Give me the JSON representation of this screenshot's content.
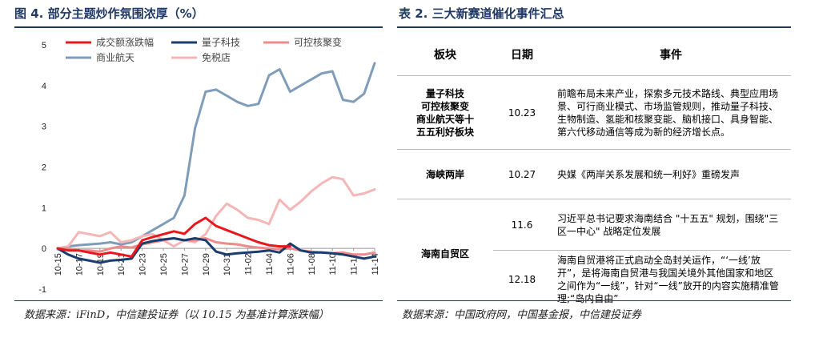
{
  "left_title": "图 4. 部分主题炒作氛围浓厚（%）",
  "right_title": "表 2. 三大新赛道催化事件汇总",
  "left_source": "数据来源：iFinD，中信建投证券（以 10.15 为基准计算涨跌幅）",
  "right_source": "数据来源：中国政府网，中国基金报，中信建投证券",
  "chart_data": {
    "type": "line",
    "title": "部分主题炒作氛围浓厚（%）",
    "ylim": [
      -1,
      5
    ],
    "yticks": [
      "5",
      "4",
      "3",
      "2",
      "1",
      "0",
      "-1"
    ],
    "x": [
      "10-15",
      "10-16",
      "10-17",
      "10-18",
      "10-19",
      "10-20",
      "10-21",
      "10-22",
      "10-23",
      "10-24",
      "10-25",
      "10-26",
      "10-27",
      "10-28",
      "10-29",
      "10-30",
      "10-31",
      "11-01",
      "11-02",
      "11-03",
      "11-04",
      "11-05",
      "11-06",
      "11-07",
      "11-08",
      "11-09",
      "11-10",
      "11-11",
      "11-12",
      "11-13",
      "11-14"
    ],
    "xticks": [
      "10-15",
      "10-17",
      "10-19",
      "10-21",
      "10-23",
      "10-25",
      "10-27",
      "10-29",
      "10-31",
      "11-02",
      "11-04",
      "11-06",
      "11-08",
      "11-10",
      "11-12",
      "11-14"
    ],
    "series": [
      {
        "name": "成交额涨跌幅",
        "color": "#e8161d",
        "values": [
          0.0,
          -0.05,
          -0.05,
          -0.1,
          -0.15,
          -0.1,
          -0.15,
          -0.2,
          0.2,
          0.28,
          0.35,
          0.42,
          0.36,
          0.6,
          0.75,
          0.55,
          0.45,
          0.35,
          0.25,
          0.15,
          0.08,
          0.05,
          0.05,
          null,
          null,
          null,
          null,
          null,
          null,
          null,
          null
        ]
      },
      {
        "name": "量子科技",
        "color": "#1a3d6d",
        "values": [
          0.0,
          -0.15,
          -0.25,
          -0.3,
          -0.35,
          -0.3,
          -0.28,
          -0.25,
          0.12,
          0.18,
          0.22,
          0.25,
          0.2,
          0.25,
          0.2,
          -0.08,
          -0.15,
          -0.12,
          -0.1,
          -0.08,
          -0.05,
          -0.1,
          0.12,
          -0.05,
          -0.1,
          -0.1,
          -0.12,
          -0.15,
          -0.2,
          -0.25,
          -0.2
        ]
      },
      {
        "name": "可控核聚变",
        "color": "#ed8b8b",
        "values": [
          0.0,
          0.0,
          -0.05,
          -0.05,
          -0.08,
          0.0,
          0.05,
          0.02,
          0.1,
          0.15,
          0.2,
          0.25,
          0.2,
          0.2,
          0.25,
          0.15,
          0.12,
          0.1,
          0.05,
          0.02,
          0.0,
          -0.02,
          0.0,
          -0.05,
          -0.08,
          -0.1,
          -0.12,
          -0.1,
          -0.15,
          -0.15,
          -0.1
        ]
      },
      {
        "name": "商业航天",
        "color": "#7f9db9",
        "values": [
          0.0,
          0.05,
          0.08,
          0.1,
          0.12,
          0.15,
          0.1,
          0.15,
          0.3,
          0.45,
          0.6,
          0.75,
          1.3,
          2.95,
          3.85,
          3.9,
          3.75,
          3.6,
          3.5,
          3.55,
          4.25,
          4.4,
          3.85,
          4.0,
          4.15,
          4.3,
          4.35,
          3.65,
          3.6,
          3.8,
          4.55
        ]
      },
      {
        "name": "免税店",
        "color": "#f4b6b6",
        "values": [
          0.0,
          0.05,
          0.4,
          0.35,
          0.3,
          0.4,
          0.15,
          0.2,
          0.3,
          0.35,
          0.2,
          0.05,
          0.2,
          0.15,
          0.35,
          0.8,
          1.1,
          0.95,
          0.75,
          0.7,
          0.6,
          1.2,
          0.95,
          1.15,
          1.4,
          1.6,
          1.75,
          1.7,
          1.3,
          1.35,
          1.45
        ]
      }
    ]
  },
  "table": {
    "headers": [
      "板块",
      "日期",
      "事件"
    ],
    "rows": [
      {
        "sector": "量子科技\n可控核聚变\n商业航天等十\n五五利好板块",
        "date": "10.23",
        "event": "前瞻布局未来产业，探索多元技术路线、典型应用场景、可行商业模式、市场监管规则，推动量子科技、生物制造、氢能和核聚变能、脑机接口、具身智能、第六代移动通信等成为新的经济增长点。"
      },
      {
        "sector": "海峡两岸",
        "date": "10.27",
        "event": "央媒《两岸关系发展和统一利好》重磅发声"
      },
      {
        "sector": "海南自贸区",
        "date": "11.6",
        "event": "习近平总书记要求海南结合 \"十五五\" 规划，围绕\"三区一中心\" 战略定位发展"
      },
      {
        "sector": "",
        "date": "12.18",
        "event": "海南自贸港将正式启动全岛封关运作，“‘一线’放开”，是将海南自贸港与我国关境外其他国家和地区之间作为“一线”，针对“一线”放开的内容实施精准管理;“岛内自由”"
      }
    ]
  }
}
